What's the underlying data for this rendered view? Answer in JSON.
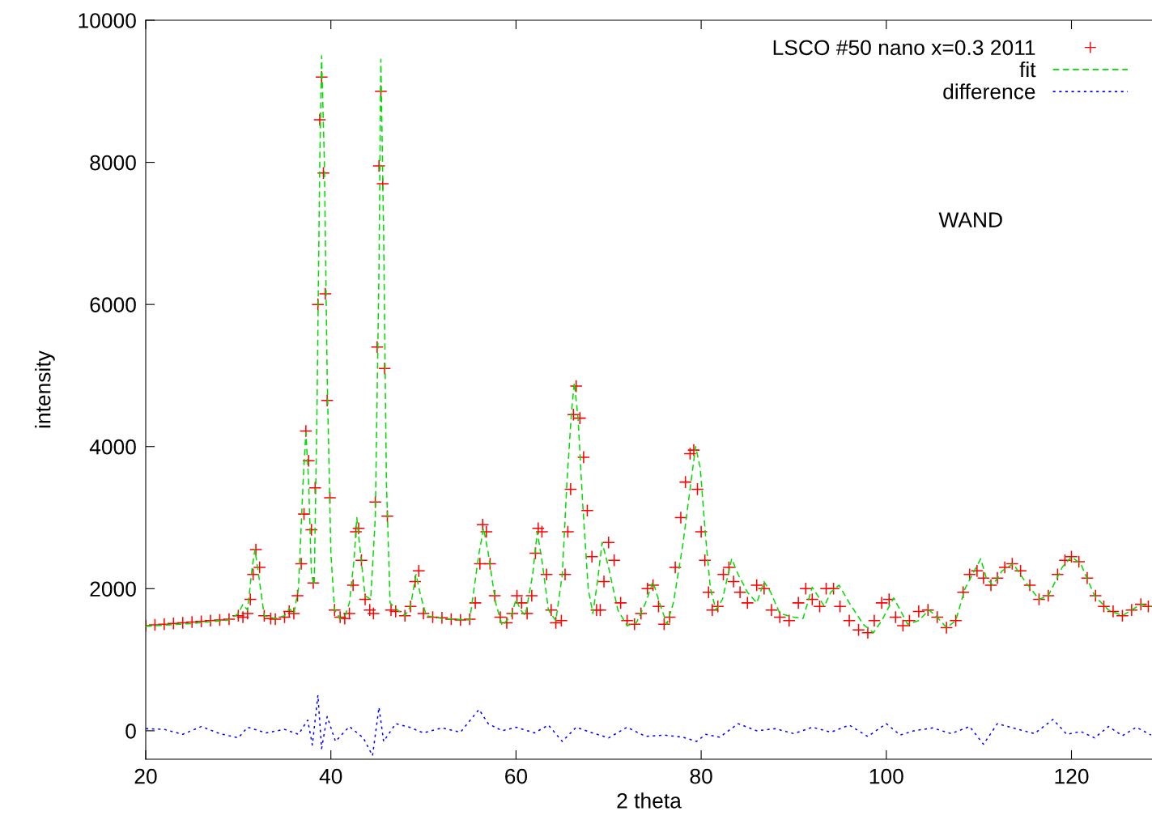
{
  "chart_data": {
    "type": "scatter",
    "xlabel": "2 theta",
    "ylabel": "intensity",
    "xlim": [
      20,
      128.7
    ],
    "ylim": [
      -400,
      10000
    ],
    "xticks": [
      20,
      40,
      60,
      80,
      100,
      120
    ],
    "yticks": [
      0,
      2000,
      4000,
      6000,
      8000,
      10000
    ],
    "grid": false,
    "legend": "top right",
    "annotations": [
      "WAND"
    ],
    "series": [
      {
        "name": "LSCO #50 nano x=0.3 2011",
        "marker": "cross",
        "color": "#ff0000",
        "x": [
          20,
          21,
          22,
          23,
          24,
          25,
          26,
          27,
          28,
          29,
          30,
          30.5,
          31,
          31.3,
          31.6,
          31.9,
          32.3,
          32.8,
          33.5,
          34,
          35,
          35.5,
          36,
          36.4,
          36.8,
          37.1,
          37.3,
          37.6,
          37.9,
          38.1,
          38.3,
          38.6,
          38.8,
          39.0,
          39.2,
          39.4,
          39.6,
          39.9,
          40.4,
          41,
          41.5,
          42,
          42.4,
          42.7,
          43,
          43.3,
          43.7,
          44.2,
          44.6,
          44.8,
          45.0,
          45.2,
          45.4,
          45.6,
          45.8,
          46.1,
          46.5,
          47,
          48,
          48.6,
          49.1,
          49.5,
          50,
          51,
          52,
          53,
          54,
          55,
          55.6,
          56.1,
          56.4,
          56.8,
          57.2,
          57.7,
          58.3,
          59,
          59.6,
          60.1,
          60.6,
          61.2,
          61.7,
          62.1,
          62.4,
          62.8,
          63.3,
          63.8,
          64.3,
          64.9,
          65.3,
          65.6,
          65.9,
          66.2,
          66.5,
          66.9,
          67.3,
          67.7,
          68.2,
          68.7,
          69.1,
          69.5,
          70,
          70.6,
          71.3,
          72,
          72.8,
          73.5,
          74.2,
          74.8,
          75.4,
          76,
          76.6,
          77.2,
          77.8,
          78.3,
          78.8,
          79.2,
          79.6,
          80,
          80.4,
          80.8,
          81.2,
          81.8,
          82.4,
          83,
          83.5,
          84.2,
          85,
          86,
          86.8,
          87.6,
          88.5,
          89.5,
          90.5,
          91.3,
          92,
          92.8,
          93.5,
          94.3,
          95,
          96,
          97,
          98,
          98.7,
          99.5,
          100.3,
          101,
          101.8,
          102.5,
          103.5,
          104.5,
          105.5,
          106.5,
          107.5,
          108.3,
          109,
          109.8,
          110.5,
          111.3,
          112,
          112.8,
          113.6,
          114.5,
          115.5,
          116.5,
          117.5,
          118.5,
          119.3,
          120,
          120.8,
          121.7,
          122.6,
          123.5,
          124.5,
          125.5,
          126.5,
          127.5,
          128.3
        ],
        "values": [
          1480,
          1490,
          1500,
          1510,
          1520,
          1530,
          1540,
          1550,
          1560,
          1570,
          1620,
          1600,
          1650,
          1850,
          2200,
          2550,
          2300,
          1620,
          1580,
          1570,
          1600,
          1680,
          1650,
          1900,
          2350,
          3050,
          4220,
          3800,
          2830,
          2080,
          3420,
          6000,
          8600,
          9200,
          7850,
          6150,
          4650,
          3280,
          1700,
          1600,
          1580,
          1650,
          2050,
          2800,
          2850,
          2400,
          1850,
          1700,
          1650,
          3220,
          5400,
          7950,
          9000,
          7700,
          5100,
          3020,
          1700,
          1680,
          1620,
          1750,
          2100,
          2250,
          1650,
          1600,
          1590,
          1570,
          1560,
          1570,
          1800,
          2350,
          2900,
          2800,
          2350,
          1900,
          1600,
          1520,
          1650,
          1900,
          1800,
          1650,
          1900,
          2500,
          2850,
          2800,
          2200,
          1700,
          1520,
          1550,
          2200,
          2800,
          3400,
          4450,
          4850,
          4400,
          3850,
          3100,
          2450,
          1700,
          1700,
          2100,
          2650,
          2400,
          1800,
          1550,
          1500,
          1650,
          2000,
          2050,
          1750,
          1500,
          1600,
          2300,
          3000,
          3500,
          3900,
          3950,
          3400,
          2800,
          2400,
          1950,
          1700,
          1750,
          2200,
          2300,
          2100,
          1950,
          1800,
          2050,
          2000,
          1700,
          1600,
          1550,
          1800,
          2000,
          1850,
          1750,
          2000,
          2000,
          1750,
          1550,
          1420,
          1380,
          1550,
          1800,
          1850,
          1600,
          1480,
          1550,
          1680,
          1700,
          1600,
          1450,
          1550,
          1950,
          2200,
          2250,
          2150,
          2050,
          2150,
          2300,
          2350,
          2250,
          2050,
          1850,
          1900,
          2200,
          2400,
          2450,
          2380,
          2150,
          1900,
          1750,
          1680,
          1620,
          1700,
          1780,
          1750
        ]
      },
      {
        "name": "fit",
        "type": "line",
        "line_style": "dashed",
        "color": "#00dd00",
        "x": [
          20,
          25,
          29,
          30,
          30.5,
          31,
          31.5,
          31.8,
          32.3,
          32.8,
          34,
          35,
          35.5,
          36,
          36.5,
          37,
          37.3,
          37.6,
          37.9,
          38.2,
          38.5,
          38.8,
          39.0,
          39.3,
          39.6,
          40,
          40.4,
          41,
          41.5,
          42,
          42.5,
          42.8,
          43.2,
          43.7,
          44.3,
          44.8,
          45.2,
          45.4,
          45.7,
          46,
          46.4,
          47,
          48,
          48.6,
          49.2,
          49.7,
          50.3,
          52,
          55,
          56,
          56.5,
          57,
          57.8,
          58.5,
          59.5,
          60,
          60.5,
          61,
          61.8,
          62.3,
          62.8,
          63.5,
          64.3,
          65,
          65.5,
          66,
          66.3,
          66.7,
          67.2,
          67.8,
          68.3,
          68.8,
          69.3,
          70,
          71,
          72,
          73,
          74,
          74.8,
          75.5,
          76.3,
          77,
          78,
          79,
          79.4,
          79.9,
          80.5,
          81,
          81.6,
          82.3,
          83.3,
          84,
          85,
          86,
          86.8,
          87.5,
          88.5,
          90,
          91,
          92,
          92.6,
          93.3,
          94,
          94.9,
          96,
          97.5,
          98.6,
          99.5,
          100.8,
          101.5,
          102.3,
          103.5,
          104.6,
          105.5,
          106.5,
          107.5,
          108.5,
          109.5,
          110.2,
          110.8,
          111.5,
          112.5,
          113.7,
          115,
          116.5,
          117.5,
          119,
          120,
          121,
          122.5,
          124,
          125.5,
          126.5,
          127.5,
          128.6
        ],
        "values": [
          1470,
          1510,
          1560,
          1650,
          1780,
          1700,
          2300,
          2550,
          2100,
          1620,
          1580,
          1620,
          1720,
          1650,
          2000,
          3500,
          4200,
          3500,
          2200,
          2050,
          4500,
          8000,
          9500,
          8000,
          5000,
          2500,
          1700,
          1580,
          1600,
          1800,
          2400,
          3000,
          2500,
          1900,
          1850,
          3000,
          6500,
          9450,
          7000,
          3500,
          1800,
          1720,
          1620,
          1750,
          2200,
          1900,
          1620,
          1580,
          1560,
          2500,
          2850,
          2500,
          1800,
          1480,
          1620,
          1850,
          1700,
          1620,
          2200,
          2800,
          2400,
          1700,
          1550,
          2200,
          3500,
          4500,
          4900,
          4400,
          3200,
          2000,
          1650,
          2100,
          2650,
          2300,
          1700,
          1480,
          1520,
          1800,
          2100,
          1800,
          1500,
          1800,
          2600,
          3600,
          4000,
          3700,
          2700,
          2000,
          1700,
          1850,
          2420,
          2200,
          1950,
          1800,
          2100,
          1950,
          1650,
          1600,
          1580,
          2020,
          1900,
          1750,
          1950,
          2050,
          1800,
          1500,
          1380,
          1550,
          1870,
          1700,
          1500,
          1550,
          1700,
          1600,
          1450,
          1550,
          2000,
          2250,
          2420,
          2150,
          2050,
          2250,
          2350,
          2100,
          1850,
          1900,
          2300,
          2450,
          2350,
          1900,
          1700,
          1620,
          1700,
          1780,
          1750
        ]
      },
      {
        "name": "difference",
        "type": "line",
        "line_style": "dotted",
        "color": "#0000ff",
        "x": [
          20,
          22,
          24,
          26,
          28,
          30,
          31,
          33,
          35,
          36.5,
          37.5,
          38,
          38.6,
          39,
          39.6,
          40.5,
          42,
          43.5,
          44.5,
          45.2,
          45.7,
          47,
          48.5,
          50,
          52,
          54,
          56,
          57,
          58.5,
          60,
          62,
          63.5,
          65,
          66.5,
          68,
          70,
          72,
          74,
          76,
          78,
          79.5,
          80.5,
          82,
          84,
          86,
          88,
          90,
          92,
          94,
          96,
          98,
          100,
          101.5,
          103,
          105,
          107,
          109,
          110.5,
          112,
          114,
          116,
          118,
          119.5,
          121,
          122.5,
          124,
          125.5,
          127,
          128.6
        ],
        "values": [
          30,
          20,
          -50,
          60,
          -40,
          -100,
          50,
          -30,
          20,
          -50,
          150,
          -200,
          500,
          -250,
          200,
          -150,
          60,
          -100,
          -350,
          330,
          -150,
          100,
          50,
          -30,
          40,
          -20,
          300,
          100,
          0,
          50,
          -30,
          80,
          -150,
          50,
          -20,
          -100,
          50,
          -80,
          -60,
          -90,
          -150,
          -50,
          -90,
          100,
          0,
          30,
          -40,
          50,
          -20,
          80,
          -80,
          100,
          -60,
          0,
          40,
          -40,
          60,
          -190,
          100,
          30,
          -40,
          160,
          -50,
          -10,
          -100,
          60,
          -70,
          50,
          -60
        ]
      }
    ]
  }
}
